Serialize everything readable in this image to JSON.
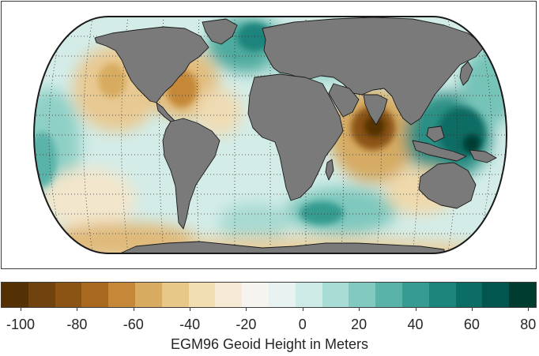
{
  "map": {
    "projection": "Eckert III (pseudocylindrical, rounded poles)",
    "land_color": "#7a7a7a",
    "coastline_color": "#1a1a1a",
    "graticule": "dotted",
    "field_features": [
      {
        "name": "Indian Ocean geoid low",
        "sign": "negative",
        "strength": "strong"
      },
      {
        "name": "New Guinea / Indonesia geoid high",
        "sign": "positive",
        "strength": "strong"
      },
      {
        "name": "North Atlantic geoid high",
        "sign": "positive",
        "strength": "moderate"
      },
      {
        "name": "Caribbean / western Atlantic low",
        "sign": "negative",
        "strength": "moderate"
      },
      {
        "name": "Eastern Pacific low",
        "sign": "negative",
        "strength": "moderate"
      },
      {
        "name": "Antarctic margin low",
        "sign": "negative",
        "strength": "weak"
      },
      {
        "name": "Southern Ocean highs",
        "sign": "positive",
        "strength": "moderate"
      }
    ]
  },
  "colorbar": {
    "title": "EGM96 Geoid Height in Meters",
    "range": [
      -107,
      83
    ],
    "colors": [
      "#543005",
      "#6f420e",
      "#8c5414",
      "#a8691f",
      "#c48838",
      "#d8ac60",
      "#e7c889",
      "#f2deb3",
      "#f6ead4",
      "#f5f4ef",
      "#e7f2f1",
      "#cdeae6",
      "#a9dcd4",
      "#82cac0",
      "#5ab3a8",
      "#369b90",
      "#1c847b",
      "#0c6d65",
      "#01574f",
      "#003c30"
    ],
    "tick_labels": [
      "-100",
      "-80",
      "-60",
      "-40",
      "-20",
      "0",
      "20",
      "40",
      "60",
      "80"
    ],
    "tick_values": [
      -100,
      -80,
      -60,
      -40,
      -20,
      0,
      20,
      40,
      60,
      80
    ]
  }
}
